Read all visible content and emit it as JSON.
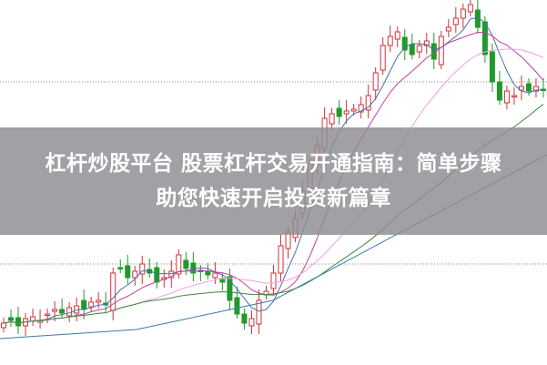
{
  "title": {
    "line1": "杠杆炒股平台 股票杠杆交易开通指南：简单步骤",
    "line2": "助您快速开启投资新篇章"
  },
  "colors": {
    "up": "#d0323a",
    "down": "#1f9a2a",
    "ma5": "#4a6fa8",
    "ma10": "#c040a0",
    "ma20": "#f0a0e0",
    "ma60": "#3a8a3a",
    "ma120": "#3a7ca8",
    "banner": "#8c8c91"
  },
  "chart": {
    "type": "candlestick",
    "grid": "dotted horizontal lines"
  }
}
